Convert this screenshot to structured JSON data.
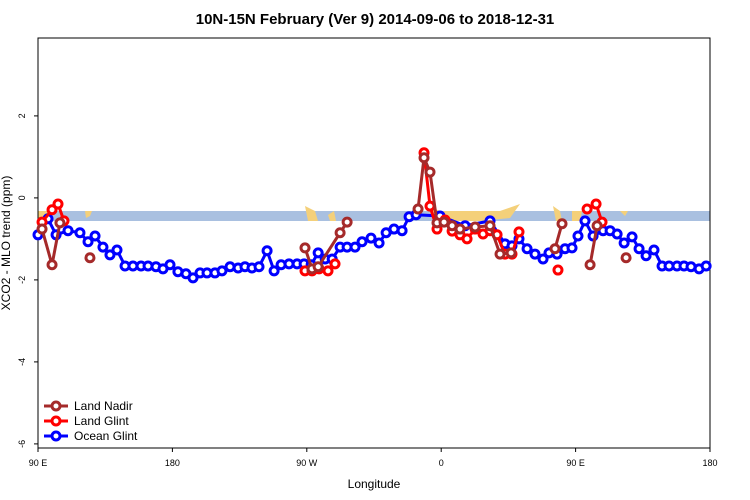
{
  "chart_data": {
    "type": "line",
    "title": "10N-15N February (Ver 9)   2014-09-06 to 2018-12-31",
    "x_label": "Longitude",
    "y_label": "XCO2 - MLO trend (ppm)",
    "xlim": [
      90,
      540
    ],
    "xticks": [
      {
        "value": 90,
        "label": "90 E"
      },
      {
        "value": 180,
        "label": "180"
      },
      {
        "value": 270,
        "label": "90 W"
      },
      {
        "value": 360,
        "label": "0"
      },
      {
        "value": 450,
        "label": "90 E"
      },
      {
        "value": 540,
        "label": "180"
      }
    ],
    "ylim": [
      -6.1,
      3.9
    ],
    "yticks": [
      -6,
      -4,
      -2,
      0,
      2
    ],
    "legend": "bottomleft",
    "series": [
      {
        "name": "Land Nadir",
        "color": "#a52a2a",
        "x": [
          92.7,
          99.4,
          104.7,
          null,
          124.8,
          null,
          268.8,
          273.5,
          277.6,
          292.3,
          297,
          null,
          344.5,
          348.5,
          352.5,
          357.2,
          361.9,
          367.3,
          372.6,
          382.7,
          392.7,
          399.4,
          406.8,
          null,
          436.2,
          440.9,
          null,
          459.7,
          464.4,
          null,
          483.8
        ],
        "values": [
          -0.76,
          -1.63,
          -0.61,
          null,
          -1.46,
          null,
          -1.22,
          -1.73,
          -1.68,
          -0.85,
          -0.59,
          null,
          -0.27,
          0.98,
          0.63,
          -0.61,
          -0.59,
          -0.68,
          -0.76,
          -0.71,
          -0.68,
          -1.37,
          -1.34,
          null,
          -1.24,
          -0.63,
          null,
          -1.63,
          -0.68,
          null,
          -1.46
        ]
      },
      {
        "name": "Land Glint",
        "color": "#ff0000",
        "x": [
          92.7,
          99.4,
          103.4,
          107.4,
          null,
          268.8,
          273.5,
          278.2,
          284.2,
          288.9,
          null,
          348.5,
          352.5,
          357.2,
          362.6,
          367.3,
          372.6,
          377.3,
          382.7,
          388,
          392.7,
          397.4,
          402.7,
          407.4,
          412.1,
          null,
          438.2,
          null,
          457.7,
          463.7,
          467.7
        ],
        "values": [
          -0.59,
          -0.29,
          -0.15,
          -0.56,
          null,
          -1.78,
          -1.78,
          -1.73,
          -1.78,
          -1.61,
          null,
          1.1,
          -0.2,
          -0.76,
          -0.54,
          -0.81,
          -0.9,
          -1.0,
          -0.76,
          -0.88,
          -0.8,
          -0.9,
          -1.37,
          -1.37,
          -0.83,
          null,
          -1.76,
          null,
          -0.27,
          -0.15,
          -0.59
        ]
      },
      {
        "name": "Ocean Glint",
        "color": "#0000ff",
        "x": [
          90,
          96.7,
          102.1,
          110.1,
          118.1,
          123.5,
          128.2,
          133.5,
          138.2,
          142.9,
          148.3,
          153.6,
          159,
          163.7,
          169,
          173.7,
          178.4,
          183.7,
          189.1,
          193.8,
          198.5,
          203.2,
          208.5,
          213.2,
          218.6,
          224,
          228.6,
          233.3,
          238,
          243.4,
          248.1,
          252.8,
          258.1,
          263.5,
          268.2,
          272.9,
          277.6,
          282.3,
          287,
          292.3,
          297,
          302.3,
          307,
          313,
          318.4,
          323.1,
          328.4,
          333.8,
          338.5,
          343.2,
          359.2,
          376,
          392.7,
          402.7,
          407.4,
          412.1,
          417.5,
          422.8,
          428.2,
          432.2,
          437.6,
          442.9,
          447.6,
          451.6,
          456.3,
          461.7,
          468.4,
          473.1,
          477.8,
          482.5,
          487.8,
          492.5,
          497.2,
          502.5,
          507.9,
          512.6,
          517.9,
          522.6,
          527.3,
          532.7,
          537.4
        ],
        "values": [
          -0.9,
          -0.51,
          -0.9,
          -0.8,
          -0.85,
          -1.07,
          -0.93,
          -1.2,
          -1.39,
          -1.27,
          -1.66,
          -1.66,
          -1.66,
          -1.66,
          -1.68,
          -1.73,
          -1.63,
          -1.8,
          -1.85,
          -1.95,
          -1.83,
          -1.83,
          -1.83,
          -1.78,
          -1.68,
          -1.71,
          -1.68,
          -1.71,
          -1.68,
          -1.29,
          -1.78,
          -1.63,
          -1.61,
          -1.61,
          -1.61,
          -1.63,
          -1.34,
          -1.49,
          -1.49,
          -1.2,
          -1.2,
          -1.2,
          -1.07,
          -0.98,
          -1.1,
          -0.85,
          -0.76,
          -0.8,
          -0.46,
          -0.41,
          -0.44,
          -0.68,
          -0.56,
          -1.12,
          -1.17,
          -1.0,
          -1.24,
          -1.37,
          -1.49,
          -1.34,
          -1.37,
          -1.24,
          -1.22,
          -0.93,
          -0.56,
          -0.93,
          -0.8,
          -0.8,
          -0.88,
          -1.1,
          -0.95,
          -1.24,
          -1.41,
          -1.27,
          -1.66,
          -1.66,
          -1.66,
          -1.66,
          -1.68,
          -1.73,
          -1.66
        ]
      }
    ]
  }
}
